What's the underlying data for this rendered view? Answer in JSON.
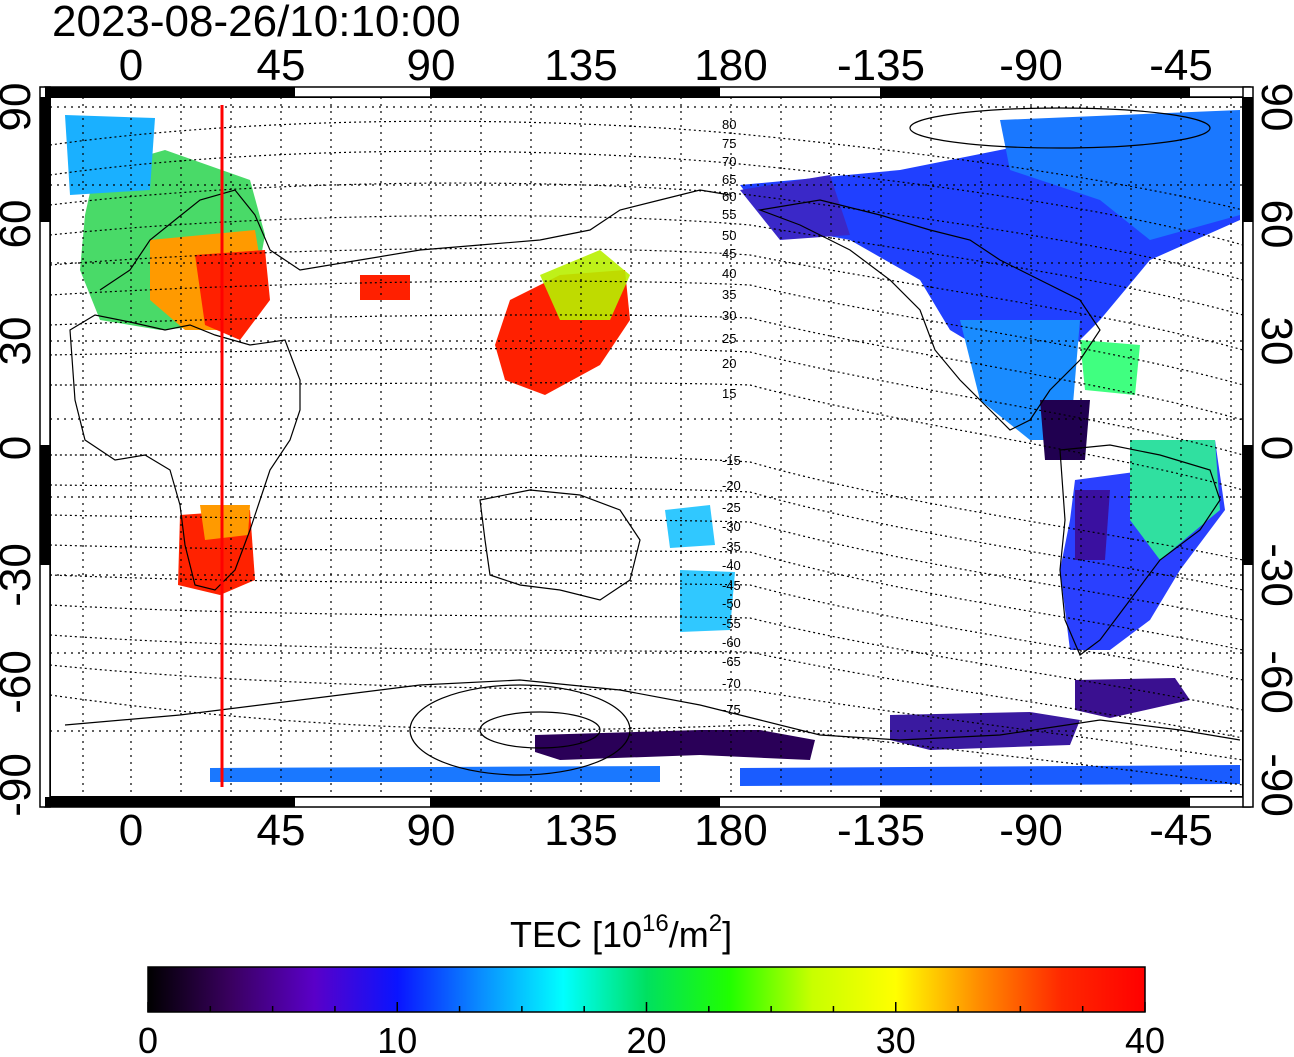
{
  "timestamp": "2023-08-26/10:10:00",
  "top_lon_labels": [
    "0",
    "45",
    "90",
    "135",
    "180",
    "-135",
    "-90",
    "-45"
  ],
  "bottom_lon_labels": [
    "0",
    "45",
    "90",
    "135",
    "180",
    "-135",
    "-90",
    "-45"
  ],
  "left_lat_labels": [
    "90",
    "60",
    "30",
    "0",
    "-30",
    "-60",
    "-90"
  ],
  "right_lat_labels": [
    "90",
    "60",
    "30",
    "0",
    "-30",
    "-60",
    "-90"
  ],
  "contour_labels": [
    "80",
    "75",
    "70",
    "65",
    "60",
    "55",
    "50",
    "45",
    "40",
    "35",
    "30",
    "25",
    "20",
    "15",
    "-15",
    "-20",
    "-25",
    "-30",
    "-35",
    "-40",
    "-45",
    "-50",
    "-55",
    "-60",
    "-65",
    "-70",
    "-75"
  ],
  "colorbar": {
    "title_main": "TEC  [10",
    "title_exp1": "16",
    "title_mid": "/m",
    "title_exp2": "2",
    "title_end": "]",
    "min": 0,
    "max": 40,
    "tick_labels": [
      "0",
      "10",
      "20",
      "30",
      "40"
    ],
    "stops": [
      "#000000",
      "#3a0060",
      "#5a00c8",
      "#0a14ff",
      "#0a8cff",
      "#00ffff",
      "#00e060",
      "#20ff00",
      "#c8ff00",
      "#ffff00",
      "#ff8c00",
      "#ff2800",
      "#ff0000"
    ]
  },
  "terminator_line": {
    "lon": 27,
    "color": "#ff0000"
  },
  "colors": {
    "frame": "#000000",
    "grid": "#000000"
  }
}
